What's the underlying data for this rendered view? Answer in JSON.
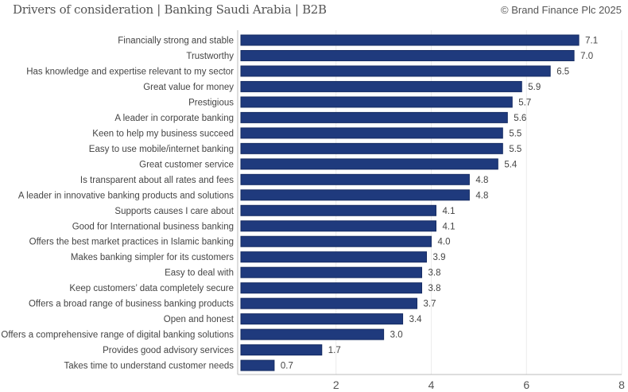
{
  "header": {
    "title": "Drivers of consideration | Banking Saudi Arabia | B2B",
    "copyright": "© Brand Finance Plc 2025"
  },
  "chart_data": {
    "type": "bar",
    "orientation": "horizontal",
    "title": "Drivers of consideration | Banking Saudi Arabia | B2B",
    "categories": [
      "Financially strong and stable",
      "Trustworthy",
      "Has knowledge and expertise relevant to my sector",
      "Great value for money",
      "Prestigious",
      "A leader in corporate banking",
      "Keen to help my  business succeed",
      "Easy to use mobile/internet banking",
      "Great customer service",
      "Is transparent about all rates and fees",
      "A leader in innovative banking products and solutions",
      "Supports causes I care about",
      "Good for International business banking",
      "Offers the best market practices in Islamic banking",
      "Makes banking simpler for its customers",
      "Easy to deal with",
      "Keep customers’ data completely secure",
      "Offers a broad range of business banking products",
      "Open and honest",
      "Offers a comprehensive range of digital banking solutions",
      "Provides good advisory services",
      "Takes time to understand customer needs"
    ],
    "values": [
      7.1,
      7.0,
      6.5,
      5.9,
      5.7,
      5.6,
      5.5,
      5.5,
      5.4,
      4.8,
      4.8,
      4.1,
      4.1,
      4.0,
      3.9,
      3.8,
      3.8,
      3.7,
      3.4,
      3.0,
      1.7,
      0.7
    ],
    "value_labels": [
      "7.1",
      "7.0",
      "6.5",
      "5.9",
      "5.7",
      "5.6",
      "5.5",
      "5.5",
      "5.4",
      "4.8",
      "4.8",
      "4.1",
      "4.1",
      "4.0",
      "3.9",
      "3.8",
      "3.8",
      "3.7",
      "3.4",
      "3.0",
      "1.7",
      "0.7"
    ],
    "xlim": [
      0,
      8
    ],
    "xticks": [
      "2",
      "4",
      "6",
      "8"
    ],
    "grid": true,
    "bar_color": "#1f3a7d"
  }
}
